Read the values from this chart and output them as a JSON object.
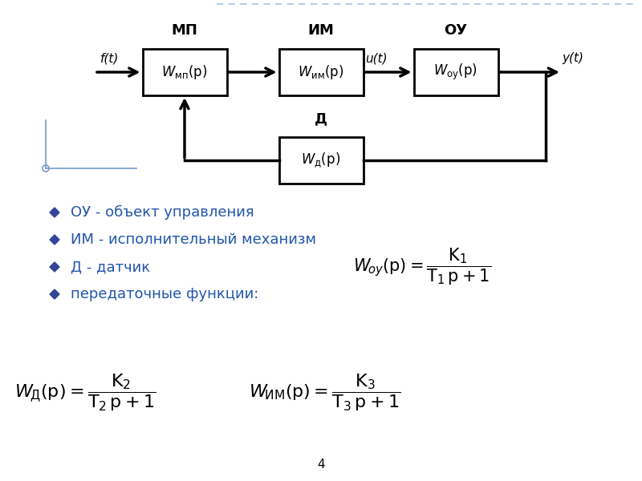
{
  "bg_color": "#ffffff",
  "border_color": "#b8cce4",
  "text_color_blue": "#2255aa",
  "text_color_black": "#000000",
  "diamond_color": "#334499",
  "page_number": "4",
  "mp_label": "МП",
  "im_label": "ИМ",
  "ou_label": "ОУ",
  "d_label": "Д",
  "mp_box": "W_мп(p)",
  "im_box": "W_им(p)",
  "ou_box": "W_оу(p)",
  "d_box": "W_д(p)",
  "ft_label": "f(t)",
  "ut_label": "u(t)",
  "yt_label": "y(t)",
  "bullet_items": [
    "ОУ - объект управления",
    "ИМ - исполнительный механизм",
    "Д - датчик",
    "передаточные функции:"
  ]
}
